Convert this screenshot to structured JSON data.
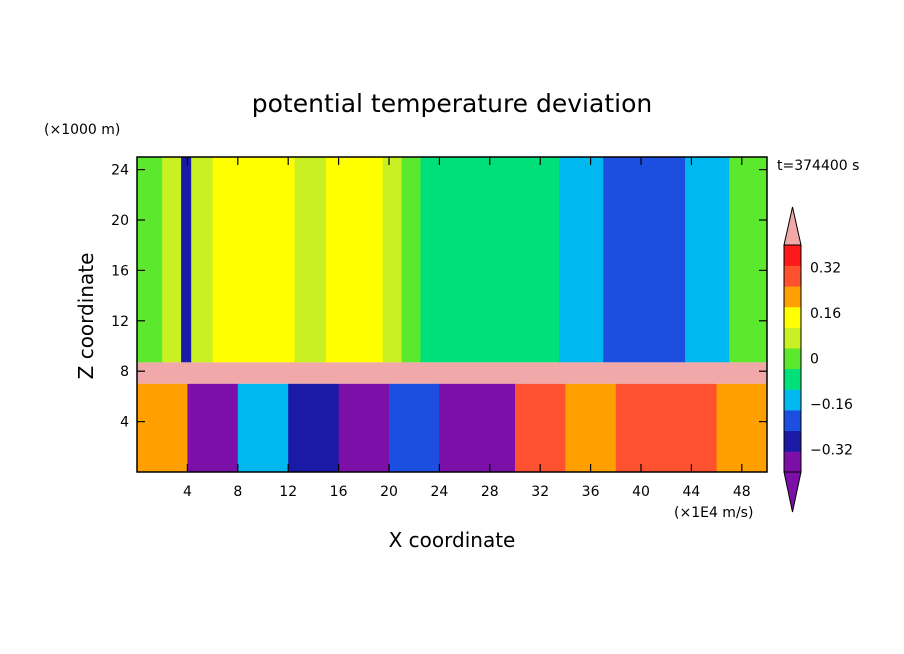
{
  "chart_data": {
    "type": "heatmap",
    "title": "potential temperature deviation",
    "xlabel": "X coordinate",
    "ylabel": "Z coordinate",
    "x_unit": "(×1E4 m/s)",
    "y_unit": "(×1000 m)",
    "time_label": "t=374400 s",
    "xlim": [
      0,
      50
    ],
    "ylim": [
      0,
      25
    ],
    "x_ticks": [
      4,
      8,
      12,
      16,
      20,
      24,
      28,
      32,
      36,
      40,
      44,
      48
    ],
    "y_ticks": [
      4,
      8,
      12,
      16,
      20,
      24
    ],
    "colorbar": {
      "labels": [
        "0.32",
        "0.16",
        "0",
        "−0.16",
        "−0.32"
      ],
      "label_values": [
        0.32,
        0.16,
        0,
        -0.16,
        -0.32
      ],
      "levels": [
        -0.4,
        -0.32,
        -0.24,
        -0.16,
        -0.08,
        0,
        0.08,
        0.16,
        0.24,
        0.32,
        0.4
      ],
      "colors": [
        "#7b0fa8",
        "#1a1aa6",
        "#1c4fe0",
        "#00b8f0",
        "#00e07a",
        "#5ce82c",
        "#c8f022",
        "#ffff00",
        "#ffa000",
        "#ff5030",
        "#ff1a1a"
      ],
      "over_color": "#f0a8a8",
      "under_color": "#7b0fa8"
    },
    "upper_regions": [
      {
        "x": [
          0,
          2
        ],
        "value": 0.04
      },
      {
        "x": [
          2,
          3.5
        ],
        "value": 0.1
      },
      {
        "x": [
          3.5,
          4.3
        ],
        "value": -0.3
      },
      {
        "x": [
          4.3,
          6
        ],
        "value": 0.14
      },
      {
        "x": [
          6,
          8
        ],
        "value": 0.2
      },
      {
        "x": [
          8,
          10
        ],
        "value": 0.16
      },
      {
        "x": [
          10,
          12.5
        ],
        "value": 0.2
      },
      {
        "x": [
          12.5,
          15
        ],
        "value": 0.14
      },
      {
        "x": [
          15,
          16.5
        ],
        "value": 0.2
      },
      {
        "x": [
          16.5,
          19.5
        ],
        "value": 0.22
      },
      {
        "x": [
          19.5,
          21
        ],
        "value": 0.14
      },
      {
        "x": [
          21,
          22.5
        ],
        "value": 0.04
      },
      {
        "x": [
          22.5,
          33.5
        ],
        "value": -0.04
      },
      {
        "x": [
          33.5,
          37
        ],
        "value": -0.12
      },
      {
        "x": [
          37,
          40
        ],
        "value": -0.2
      },
      {
        "x": [
          40,
          43.5
        ],
        "value": -0.24
      },
      {
        "x": [
          43.5,
          47
        ],
        "value": -0.12
      },
      {
        "x": [
          47,
          50
        ],
        "value": 0.04
      }
    ],
    "boundary_layer": {
      "z": [
        7,
        8.7
      ],
      "value": 0.42
    },
    "lower_regions": [
      {
        "x": [
          0,
          4
        ],
        "value": 0.28
      },
      {
        "x": [
          4,
          8
        ],
        "value": -0.36
      },
      {
        "x": [
          8,
          12
        ],
        "value": -0.1
      },
      {
        "x": [
          12,
          16
        ],
        "value": -0.3
      },
      {
        "x": [
          16,
          20
        ],
        "value": -0.36
      },
      {
        "x": [
          20,
          24
        ],
        "value": -0.24
      },
      {
        "x": [
          24,
          30
        ],
        "value": -0.36
      },
      {
        "x": [
          30,
          34
        ],
        "value": 0.36
      },
      {
        "x": [
          34,
          38
        ],
        "value": 0.28
      },
      {
        "x": [
          38,
          46
        ],
        "value": 0.34
      },
      {
        "x": [
          46,
          50
        ],
        "value": 0.26
      }
    ]
  }
}
